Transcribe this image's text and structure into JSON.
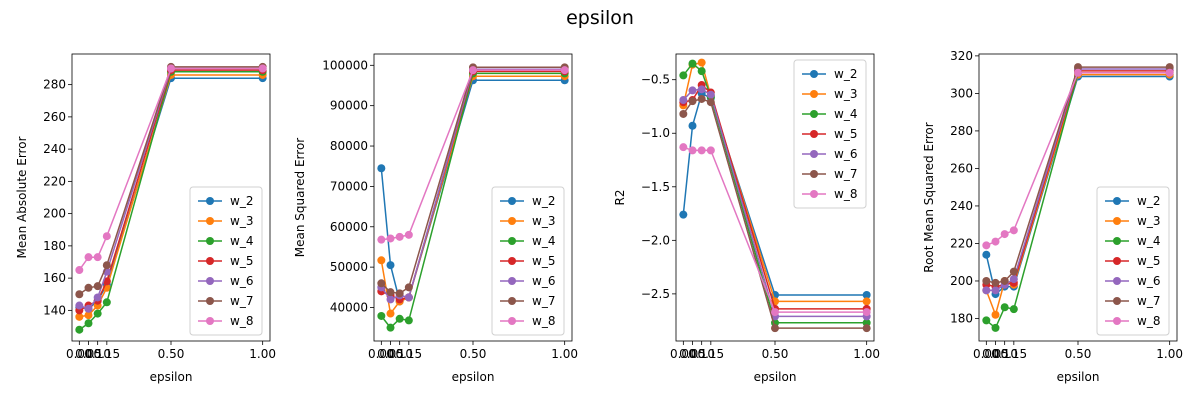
{
  "figure_title": "epsilon",
  "chart_data": [
    {
      "type": "line",
      "xlabel": "epsilon",
      "ylabel": "Mean Absolute Error",
      "x": [
        0.0,
        0.05,
        0.1,
        0.15,
        0.5,
        1.0
      ],
      "xlim": [
        -0.04,
        1.04
      ],
      "xticks": [
        0.0,
        0.05,
        0.1,
        0.15,
        0.5,
        1.0
      ],
      "xtick_labels": [
        "0.00",
        "0.05",
        "0.10",
        "0.15",
        "0.50",
        "1.00"
      ],
      "ylim": [
        121,
        299
      ],
      "yticks": [
        140,
        160,
        180,
        200,
        220,
        240,
        260,
        280
      ],
      "legend": "lower-right",
      "series": [
        {
          "name": "w_2",
          "color": "#1f77b4",
          "values": [
            142,
            141,
            146,
            156,
            284,
            284
          ]
        },
        {
          "name": "w_3",
          "color": "#ff7f0e",
          "values": [
            136,
            137,
            143,
            154,
            286,
            286
          ]
        },
        {
          "name": "w_4",
          "color": "#2ca02c",
          "values": [
            128,
            132,
            138,
            145,
            288,
            288
          ]
        },
        {
          "name": "w_5",
          "color": "#d62728",
          "values": [
            140,
            143,
            146,
            158,
            289,
            289
          ]
        },
        {
          "name": "w_6",
          "color": "#9467bd",
          "values": [
            143,
            141,
            148,
            164,
            290,
            290
          ]
        },
        {
          "name": "w_7",
          "color": "#8c564b",
          "values": [
            150,
            154,
            155,
            168,
            291,
            291
          ]
        },
        {
          "name": "w_8",
          "color": "#e377c2",
          "values": [
            165,
            173,
            173,
            186,
            290,
            290
          ]
        }
      ]
    },
    {
      "type": "line",
      "xlabel": "epsilon",
      "ylabel": "Mean Squared Error",
      "x": [
        0.0,
        0.05,
        0.1,
        0.15,
        0.5,
        1.0
      ],
      "xlim": [
        -0.04,
        1.04
      ],
      "xticks": [
        0.0,
        0.05,
        0.1,
        0.15,
        0.5,
        1.0
      ],
      "xtick_labels": [
        "0.00",
        "0.05",
        "0.10",
        "0.15",
        "0.50",
        "1.00"
      ],
      "ylim": [
        31700,
        102800
      ],
      "yticks": [
        40000,
        50000,
        60000,
        70000,
        80000,
        90000,
        100000
      ],
      "legend": "lower-right",
      "series": [
        {
          "name": "w_2",
          "color": "#1f77b4",
          "values": [
            74500,
            50500,
            41500,
            42500,
            96300,
            96300
          ]
        },
        {
          "name": "w_3",
          "color": "#ff7f0e",
          "values": [
            51700,
            38500,
            41500,
            42500,
            97300,
            97300
          ]
        },
        {
          "name": "w_4",
          "color": "#2ca02c",
          "values": [
            37900,
            35000,
            37200,
            36800,
            98000,
            98000
          ]
        },
        {
          "name": "w_5",
          "color": "#d62728",
          "values": [
            44000,
            43000,
            42000,
            42500,
            98500,
            98500
          ]
        },
        {
          "name": "w_6",
          "color": "#9467bd",
          "values": [
            45000,
            42000,
            43000,
            42500,
            99000,
            99000
          ]
        },
        {
          "name": "w_7",
          "color": "#8c564b",
          "values": [
            46000,
            43800,
            43500,
            45000,
            99500,
            99500
          ]
        },
        {
          "name": "w_8",
          "color": "#e377c2",
          "values": [
            56800,
            57100,
            57500,
            58000,
            98800,
            98800
          ]
        }
      ]
    },
    {
      "type": "line",
      "xlabel": "epsilon",
      "ylabel": "R2",
      "x": [
        0.0,
        0.05,
        0.1,
        0.15,
        0.5,
        1.0
      ],
      "xlim": [
        -0.04,
        1.04
      ],
      "xticks": [
        0.0,
        0.05,
        0.1,
        0.15,
        0.5,
        1.0
      ],
      "xtick_labels": [
        "0.00",
        "0.05",
        "0.10",
        "0.15",
        "0.50",
        "1.00"
      ],
      "ylim": [
        -2.94,
        -0.26
      ],
      "yticks": [
        -2.5,
        -2.0,
        -1.5,
        -1.0,
        -0.5
      ],
      "legend": "upper-right",
      "series": [
        {
          "name": "w_2",
          "color": "#1f77b4",
          "values": [
            -1.76,
            -0.93,
            -0.63,
            -0.67,
            -2.51,
            -2.51
          ]
        },
        {
          "name": "w_3",
          "color": "#ff7f0e",
          "values": [
            -0.74,
            -0.36,
            -0.34,
            -0.65,
            -2.57,
            -2.57
          ]
        },
        {
          "name": "w_4",
          "color": "#2ca02c",
          "values": [
            -0.46,
            -0.35,
            -0.42,
            -0.66,
            -2.77,
            -2.77
          ]
        },
        {
          "name": "w_5",
          "color": "#d62728",
          "values": [
            -0.71,
            -0.69,
            -0.55,
            -0.62,
            -2.64,
            -2.64
          ]
        },
        {
          "name": "w_6",
          "color": "#9467bd",
          "values": [
            -0.69,
            -0.6,
            -0.59,
            -0.64,
            -2.71,
            -2.71
          ]
        },
        {
          "name": "w_7",
          "color": "#8c564b",
          "values": [
            -0.82,
            -0.7,
            -0.68,
            -0.71,
            -2.82,
            -2.82
          ]
        },
        {
          "name": "w_8",
          "color": "#e377c2",
          "values": [
            -1.13,
            -1.16,
            -1.16,
            -1.16,
            -2.67,
            -2.67
          ]
        }
      ]
    },
    {
      "type": "line",
      "xlabel": "epsilon",
      "ylabel": "Root Mean Squared Error",
      "x": [
        0.0,
        0.05,
        0.1,
        0.15,
        0.5,
        1.0
      ],
      "xlim": [
        -0.04,
        1.04
      ],
      "xticks": [
        0.0,
        0.05,
        0.1,
        0.15,
        0.5,
        1.0
      ],
      "xtick_labels": [
        "0.00",
        "0.05",
        "0.10",
        "0.15",
        "0.50",
        "1.00"
      ],
      "ylim": [
        168,
        321
      ],
      "yticks": [
        180,
        200,
        220,
        240,
        260,
        280,
        300,
        320
      ],
      "legend": "lower-right",
      "series": [
        {
          "name": "w_2",
          "color": "#1f77b4",
          "values": [
            214,
            193,
            197,
            197,
            309,
            309
          ]
        },
        {
          "name": "w_3",
          "color": "#ff7f0e",
          "values": [
            195,
            182,
            200,
            198,
            310,
            310
          ]
        },
        {
          "name": "w_4",
          "color": "#2ca02c",
          "values": [
            179,
            175,
            186,
            185,
            311,
            311
          ]
        },
        {
          "name": "w_5",
          "color": "#d62728",
          "values": [
            198,
            197,
            198,
            199,
            312,
            312
          ]
        },
        {
          "name": "w_6",
          "color": "#9467bd",
          "values": [
            195,
            195,
            198,
            201,
            313,
            313
          ]
        },
        {
          "name": "w_7",
          "color": "#8c564b",
          "values": [
            200,
            199,
            200,
            205,
            314,
            314
          ]
        },
        {
          "name": "w_8",
          "color": "#e377c2",
          "values": [
            219,
            221,
            225,
            227,
            311,
            311
          ]
        }
      ]
    }
  ]
}
